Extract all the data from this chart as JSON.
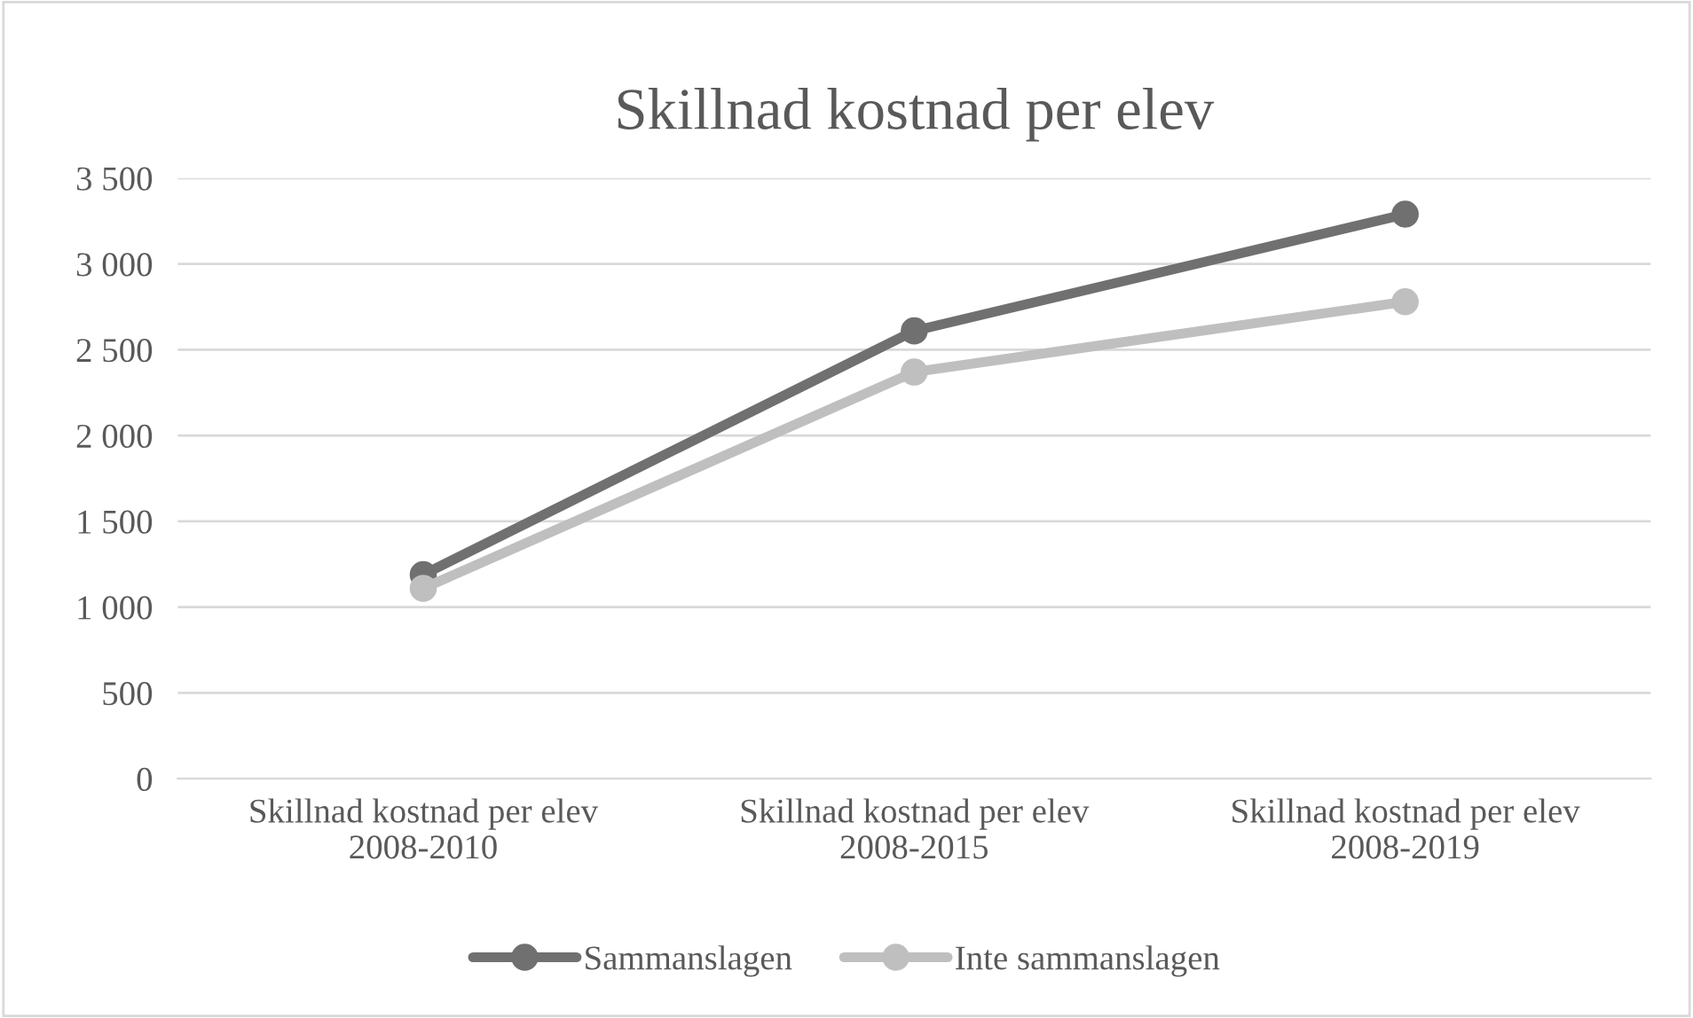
{
  "chart_data": {
    "type": "line",
    "title": "Skillnad kostnad per elev",
    "categories": [
      "Skillnad kostnad per elev\n2008-2010",
      "Skillnad kostnad per elev\n2008-2015",
      "Skillnad kostnad per elev\n2008-2019"
    ],
    "series": [
      {
        "name": "Sammanslagen",
        "color": "#707070",
        "values": [
          1190,
          2610,
          3290
        ]
      },
      {
        "name": "Inte sammanslagen",
        "color": "#bfbfbf",
        "values": [
          1110,
          2370,
          2780
        ]
      }
    ],
    "ylim": [
      0,
      3500
    ],
    "yticks": [
      0,
      500,
      {
        "value": 1000,
        "label": "1 000"
      },
      {
        "value": 1500,
        "label": "1 500"
      },
      {
        "value": 2000,
        "label": "2 000"
      },
      {
        "value": 2500,
        "label": "2 500"
      },
      {
        "value": 3000,
        "label": "3 000"
      },
      {
        "value": 3500,
        "label": "3 500"
      }
    ],
    "grid": "y",
    "legend": "bottom",
    "marker": "circle",
    "line_style": "solid"
  }
}
